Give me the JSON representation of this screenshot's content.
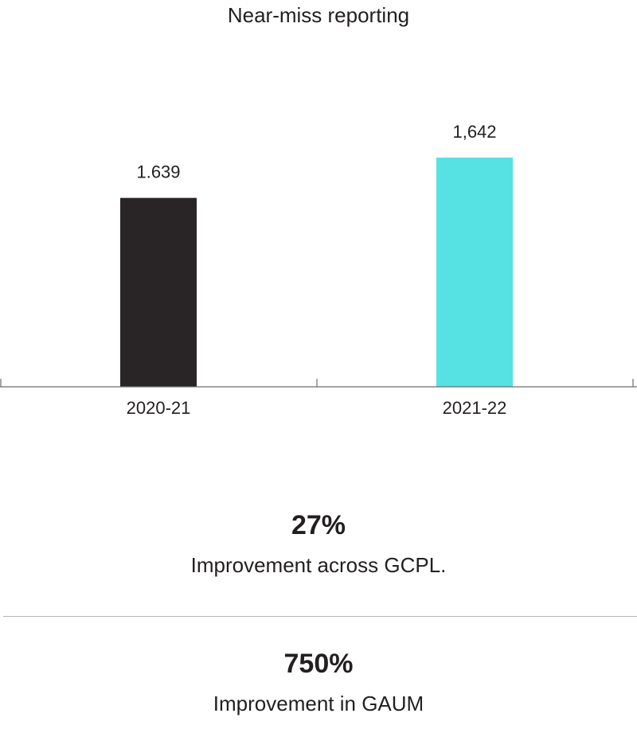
{
  "chart_data": {
    "type": "bar",
    "title": "Near-miss reporting",
    "categories": [
      "2020-21",
      "2021-22"
    ],
    "values": [
      1639,
      1642
    ],
    "data_labels": [
      "1.639",
      "1,642"
    ],
    "colors": [
      "#292526",
      "#56e2e2"
    ],
    "xlabel": "",
    "ylabel": "",
    "grid": false,
    "legend": "none"
  },
  "stats": [
    {
      "value": "27%",
      "description": "Improvement across GCPL."
    },
    {
      "value": "750%",
      "description": "Improvement in GAUM"
    }
  ]
}
